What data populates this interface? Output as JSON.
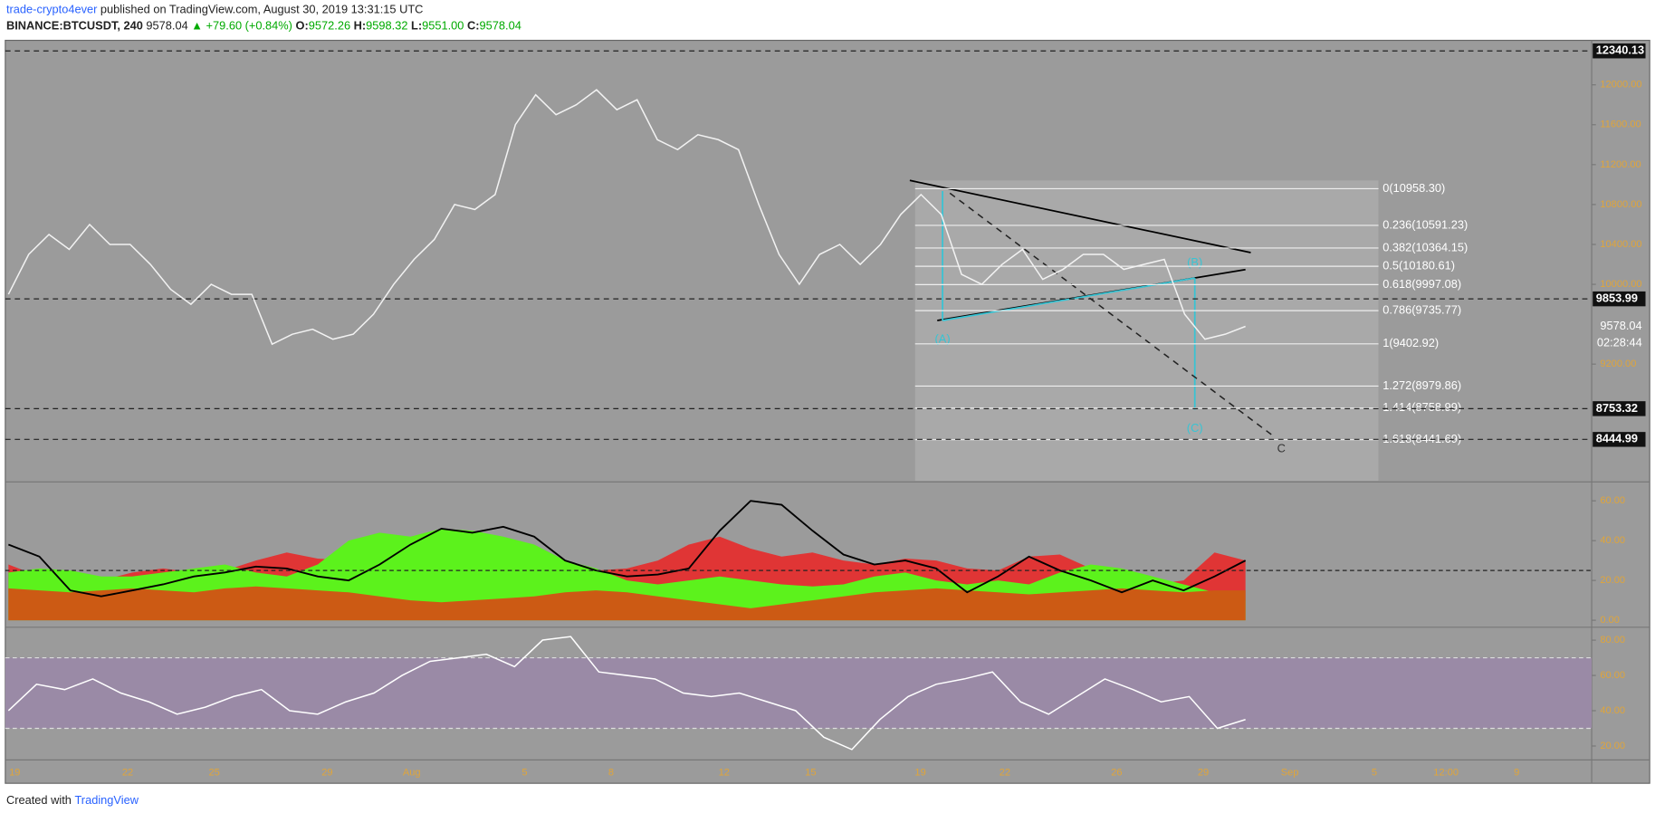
{
  "header": {
    "author": "trade-crypto4ever",
    "published": "published on TradingView.com, August 30, 2019 13:31:15 UTC",
    "symbol": "BINANCE:BTCUSDT, 240",
    "last": "9578.04",
    "change": "▲ +79.60 (+0.84%)",
    "o_label": "O:",
    "open": "9572.26",
    "h_label": "H:",
    "high": "9598.32",
    "l_label": "L:",
    "low": "9551.00",
    "c_label": "C:",
    "close": "9578.04"
  },
  "footer": {
    "text": "Created with",
    "brand": "TradingView"
  },
  "chart_data": [
    {
      "type": "line",
      "ylim": [
        8030,
        12425
      ],
      "yticks": [
        {
          "value": 12000,
          "label": "12000.00"
        },
        {
          "value": 11600,
          "label": "11600.00"
        },
        {
          "value": 11200,
          "label": "11200.00"
        },
        {
          "value": 10800,
          "label": "10800.00"
        },
        {
          "value": 10400,
          "label": "10400.00"
        },
        {
          "value": 10000,
          "label": "10000.00"
        },
        {
          "value": 9200,
          "label": "9200.00"
        }
      ],
      "series": [
        {
          "name": "BTCUSDT",
          "color": "#f2f2f2",
          "values": [
            9900,
            10300,
            10500,
            10350,
            10600,
            10400,
            10400,
            10200,
            9950,
            9800,
            10000,
            9900,
            9900,
            9400,
            9500,
            9550,
            9450,
            9500,
            9700,
            10000,
            10250,
            10450,
            10800,
            10750,
            10900,
            11600,
            11900,
            11700,
            11800,
            11950,
            11750,
            11850,
            11450,
            11350,
            11500,
            11450,
            11350,
            10800,
            10300,
            10000,
            10300,
            10400,
            10200,
            10400,
            10700,
            10900,
            10700,
            10100,
            10000,
            10200,
            10350,
            10050,
            10150,
            10300,
            10300,
            10150,
            10200,
            10250,
            9700,
            9450,
            9500,
            9578.04
          ]
        }
      ],
      "price_lines": [
        {
          "value": 12340.13,
          "label": "12340.13"
        },
        {
          "value": 9853.99,
          "label": "9853.99"
        },
        {
          "value": 8753.32,
          "label": "8753.32"
        },
        {
          "value": 8444.99,
          "label": "8444.99"
        }
      ],
      "last_price": {
        "value": 9578.04,
        "label": "9578.04"
      },
      "countdown": "02:28:44",
      "fib_levels": [
        {
          "value": 10958.3,
          "label": "0(10958.30)"
        },
        {
          "value": 10591.23,
          "label": "0.236(10591.23)"
        },
        {
          "value": 10364.15,
          "label": "0.382(10364.15)"
        },
        {
          "value": 10180.61,
          "label": "0.5(10180.61)"
        },
        {
          "value": 9997.08,
          "label": "0.618(9997.08)"
        },
        {
          "value": 9735.77,
          "label": "0.786(9735.77)"
        },
        {
          "value": 9402.92,
          "label": "1(9402.92)"
        },
        {
          "value": 8979.86,
          "label": "1.272(8979.86)"
        },
        {
          "value": 8758.99,
          "label": "1.414(8758.99)"
        },
        {
          "value": 8441.69,
          "label": "1.618(8441.69)"
        }
      ],
      "annotations": [
        "(A)",
        "(B)",
        "(C)",
        "C"
      ],
      "x_labels": [
        "19",
        "22",
        "25",
        "29",
        "Aug",
        "5",
        "8",
        "12",
        "15",
        "19",
        "22",
        "26",
        "29",
        "Sep",
        "5",
        "12:00",
        "9"
      ]
    },
    {
      "type": "area",
      "ylim": [
        -3,
        69
      ],
      "yticks": [
        {
          "value": 60,
          "label": "60.00"
        },
        {
          "value": 40,
          "label": "40.00"
        },
        {
          "value": 20,
          "label": "20.00"
        },
        {
          "value": 0,
          "label": "0.00"
        }
      ],
      "hline": 25,
      "series": [
        {
          "name": "Red",
          "color": "#e03535",
          "values": [
            28,
            22,
            18,
            20,
            24,
            26,
            24,
            25,
            30,
            34,
            31,
            30,
            28,
            26,
            24,
            22,
            20,
            22,
            24,
            25,
            26,
            30,
            38,
            42,
            36,
            32,
            34,
            30,
            28,
            31,
            30,
            26,
            25,
            32,
            33,
            26,
            20,
            18,
            20,
            34,
            30
          ]
        },
        {
          "name": "Green",
          "color": "#5cf21c",
          "values": [
            24,
            26,
            25,
            22,
            22,
            24,
            26,
            28,
            24,
            22,
            28,
            40,
            44,
            42,
            46,
            45,
            42,
            38,
            30,
            26,
            20,
            18,
            20,
            22,
            20,
            18,
            17,
            18,
            22,
            24,
            20,
            18,
            20,
            18,
            24,
            28,
            26,
            22,
            18,
            14,
            10
          ]
        },
        {
          "name": "Orange",
          "color": "#cc5a14",
          "values": [
            16,
            15,
            14,
            15,
            16,
            15,
            14,
            16,
            17,
            16,
            15,
            14,
            12,
            10,
            9,
            10,
            11,
            12,
            14,
            15,
            14,
            12,
            10,
            8,
            6,
            8,
            10,
            12,
            14,
            15,
            16,
            15,
            14,
            13,
            14,
            15,
            16,
            15,
            14,
            15,
            15
          ]
        },
        {
          "name": "Trend",
          "color": "#000000",
          "values": [
            38,
            32,
            15,
            12,
            15,
            18,
            22,
            24,
            27,
            26,
            22,
            20,
            28,
            38,
            46,
            44,
            47,
            42,
            30,
            25,
            22,
            23,
            26,
            45,
            60,
            58,
            45,
            33,
            28,
            30,
            26,
            14,
            22,
            32,
            25,
            20,
            14,
            20,
            15,
            22,
            30
          ]
        }
      ]
    },
    {
      "type": "line",
      "ylim": [
        12.7,
        86.7
      ],
      "yticks": [
        {
          "value": 80,
          "label": "80.00"
        },
        {
          "value": 60,
          "label": "60.00"
        },
        {
          "value": 40,
          "label": "40.00"
        },
        {
          "value": 20,
          "label": "20.00"
        }
      ],
      "band": [
        30,
        70
      ],
      "series": [
        {
          "name": "RSI",
          "color": "#ffffff",
          "values": [
            40,
            55,
            52,
            58,
            50,
            45,
            38,
            42,
            48,
            52,
            40,
            38,
            45,
            50,
            60,
            68,
            70,
            72,
            65,
            80,
            82,
            62,
            60,
            58,
            50,
            48,
            50,
            45,
            40,
            25,
            18,
            35,
            48,
            55,
            58,
            62,
            45,
            38,
            48,
            58,
            52,
            45,
            48,
            30,
            35
          ]
        }
      ]
    }
  ]
}
